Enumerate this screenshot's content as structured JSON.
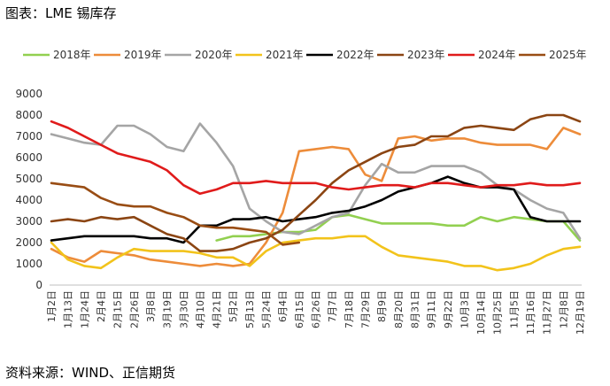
{
  "page": {
    "title": "图表：LME 锡库存",
    "source": "资料来源：WIND、正信期货"
  },
  "chart_data": {
    "type": "line",
    "title": "图表：LME 锡库存",
    "xlabel": "",
    "ylabel": "",
    "ylim": [
      0,
      9000
    ],
    "yticks": [
      0,
      1000,
      2000,
      3000,
      4000,
      5000,
      6000,
      7000,
      8000,
      9000
    ],
    "grid": false,
    "legend_position": "top",
    "categories": [
      "1月2日",
      "1月13日",
      "1月24日",
      "2月4日",
      "2月15日",
      "2月26日",
      "3月8日",
      "3月19日",
      "3月30日",
      "4月10日",
      "4月21日",
      "5月2日",
      "5月13日",
      "5月24日",
      "6月4日",
      "6月15日",
      "6月26日",
      "7月7日",
      "7月18日",
      "7月29日",
      "8月9日",
      "8月20日",
      "8月31日",
      "9月11日",
      "9月22日",
      "10月3日",
      "10月14日",
      "10月25日",
      "11月5日",
      "11月16日",
      "11月27日",
      "12月8日",
      "12月19日"
    ],
    "series": [
      {
        "name": "2018年",
        "color": "#92d050",
        "values": [
          null,
          null,
          null,
          null,
          null,
          null,
          null,
          null,
          null,
          null,
          2100,
          2300,
          2300,
          2400,
          2500,
          2500,
          2600,
          3200,
          3300,
          3100,
          2900,
          2900,
          2900,
          2900,
          2800,
          2800,
          3200,
          3000,
          3200,
          3100,
          3000,
          3000,
          2100
        ]
      },
      {
        "name": "2019年",
        "color": "#ed8c3a",
        "values": [
          1700,
          1300,
          1100,
          1600,
          1500,
          1400,
          1200,
          1100,
          1000,
          900,
          1000,
          900,
          1000,
          2000,
          3400,
          6300,
          6400,
          6500,
          6400,
          5200,
          4900,
          6900,
          7000,
          6800,
          6900,
          6900,
          6700,
          6600,
          6600,
          6600,
          6400,
          7400,
          7100
        ]
      },
      {
        "name": "2020年",
        "color": "#a5a5a5",
        "values": [
          7100,
          6900,
          6700,
          6600,
          7500,
          7500,
          7100,
          6500,
          6300,
          7600,
          6700,
          5600,
          3600,
          3000,
          2500,
          2400,
          2800,
          3200,
          3400,
          4700,
          5700,
          5300,
          5300,
          5600,
          5600,
          5600,
          5300,
          4700,
          4500,
          4000,
          3600,
          3400,
          2200
        ]
      },
      {
        "name": "2021年",
        "color": "#f2c31b",
        "values": [
          2000,
          1200,
          900,
          800,
          1300,
          1700,
          1600,
          1600,
          1600,
          1500,
          1300,
          1300,
          900,
          1600,
          2000,
          2100,
          2200,
          2200,
          2300,
          2300,
          1800,
          1400,
          1300,
          1200,
          1100,
          900,
          900,
          700,
          800,
          1000,
          1400,
          1700,
          1800
        ]
      },
      {
        "name": "2022年",
        "color": "#000000",
        "values": [
          2100,
          2200,
          2300,
          2300,
          2300,
          2300,
          2200,
          2200,
          2000,
          2800,
          2800,
          3100,
          3100,
          3200,
          3000,
          3100,
          3200,
          3400,
          3500,
          3700,
          4000,
          4400,
          4600,
          4800,
          5100,
          4800,
          4600,
          4600,
          4500,
          3200,
          3000,
          3000,
          3000
        ]
      },
      {
        "name": "2023年",
        "color": "#8b4513",
        "values": [
          3000,
          3100,
          3000,
          3200,
          3100,
          3200,
          2800,
          2400,
          2200,
          1600,
          1600,
          1700,
          2000,
          2200,
          2600,
          3300,
          4000,
          4800,
          5400,
          5800,
          6200,
          6500,
          6600,
          7000,
          7000,
          7400,
          7500,
          7400,
          7300,
          7800,
          8000,
          8000,
          7700
        ]
      },
      {
        "name": "2024年",
        "color": "#e01b1b",
        "values": [
          7700,
          7400,
          7000,
          6600,
          6200,
          6000,
          5800,
          5400,
          4700,
          4300,
          4500,
          4800,
          4800,
          4900,
          4800,
          4800,
          4800,
          4600,
          4500,
          4600,
          4700,
          4700,
          4600,
          4800,
          4800,
          4700,
          4600,
          4700,
          4700,
          4800,
          4700,
          4700,
          4800
        ]
      },
      {
        "name": "2025年",
        "color": "#994d14",
        "values": [
          4800,
          4700,
          4600,
          4100,
          3800,
          3700,
          3700,
          3400,
          3200,
          2800,
          2700,
          2700,
          2600,
          2500,
          1900,
          2000,
          null,
          null,
          null,
          null,
          null,
          null,
          null,
          null,
          null,
          null,
          null,
          null,
          null,
          null,
          null,
          null,
          null
        ]
      }
    ]
  }
}
